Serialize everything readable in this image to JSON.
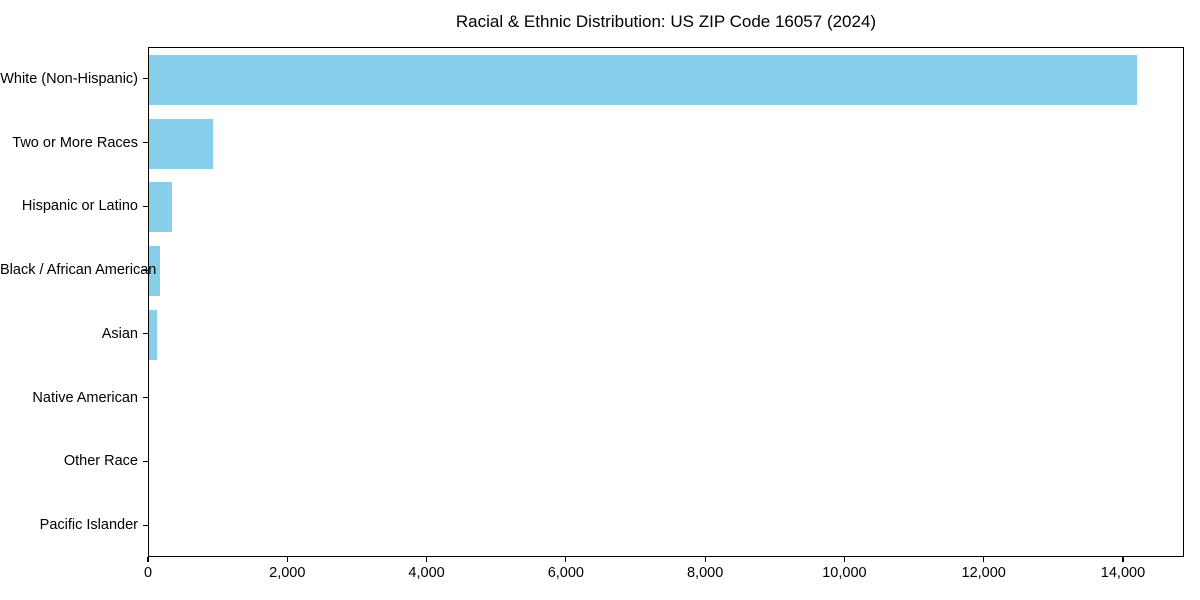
{
  "colors": {
    "bar": "#87CEEB",
    "axis": "#000000",
    "background": "#FFFFFF",
    "text": "#000000"
  },
  "chart_data": {
    "type": "bar",
    "orientation": "horizontal",
    "title": "Racial & Ethnic Distribution: US ZIP Code 16057 (2024)",
    "categories": [
      "White (Non-Hispanic)",
      "Two or More Races",
      "Hispanic or Latino",
      "Black / African American",
      "Asian",
      "Native American",
      "Other Race",
      "Pacific Islander"
    ],
    "values": [
      14190,
      920,
      335,
      160,
      115,
      0,
      0,
      0
    ],
    "xlabel": "",
    "ylabel": "",
    "xlim": [
      0,
      14876
    ],
    "x_ticks": [
      0,
      2000,
      4000,
      6000,
      8000,
      10000,
      12000,
      14000
    ],
    "x_tick_labels": [
      "0",
      "2,000",
      "4,000",
      "6,000",
      "8,000",
      "10,000",
      "12,000",
      "14,000"
    ],
    "grid": false,
    "legend": null,
    "bar_color": "#87CEEB"
  }
}
